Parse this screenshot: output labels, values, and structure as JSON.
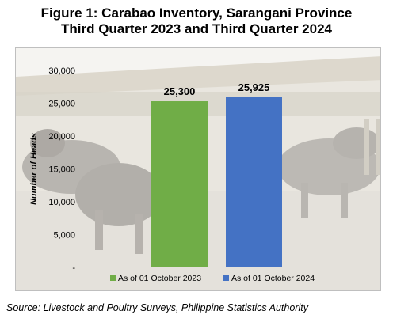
{
  "header": {
    "title_line1": "Figure 1: Carabao Inventory, Sarangani Province",
    "title_line2": "Third Quarter 2023 and Third Quarter 2024"
  },
  "footer": {
    "source": "Source: Livestock and Poultry Surveys, Philippine Statistics Authority"
  },
  "chart_data": {
    "type": "bar",
    "title": "Figure 1: Carabao Inventory, Sarangani Province Third Quarter 2023 and Third Quarter 2024",
    "ylabel": "Number of Heads",
    "xlabel": "",
    "ylim": [
      0,
      30000
    ],
    "y_ticks": [
      0,
      5000,
      10000,
      15000,
      20000,
      25000,
      30000
    ],
    "y_tick_labels": [
      "-",
      "5,000",
      "10,000",
      "15,000",
      "20,000",
      "25,000",
      "30,000"
    ],
    "grid": false,
    "legend_position": "bottom",
    "background": "photo of carabaos in a pen",
    "series": [
      {
        "name": "As of 01 October 2023",
        "value": 25300,
        "label": "25,300",
        "color": "#70ad47"
      },
      {
        "name": "As of 01 October 2024",
        "value": 25925,
        "label": "25,925",
        "color": "#4472c4"
      }
    ]
  }
}
